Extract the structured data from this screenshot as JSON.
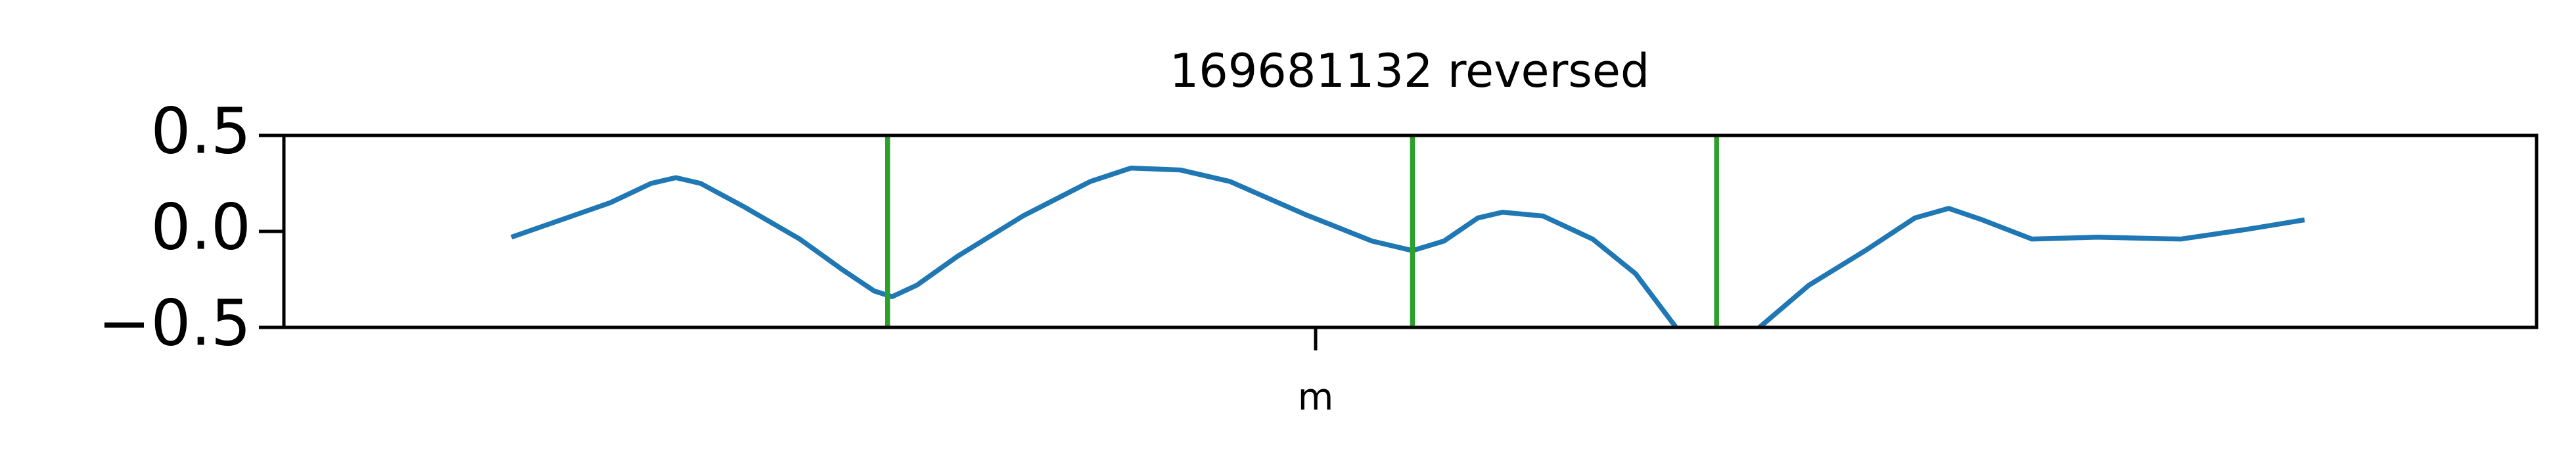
{
  "chart_data": {
    "type": "line",
    "title": "169681132 reversed",
    "x": [
      10.1,
      12.3,
      14.5,
      16.3,
      17.4,
      18.5,
      20.4,
      22.9,
      24.8,
      26.2,
      27.0,
      28.1,
      29.9,
      32.8,
      35.8,
      37.6,
      39.8,
      42.0,
      45.3,
      48.3,
      50.1,
      51.5,
      53.0,
      54.1,
      55.9,
      58.1,
      60.0,
      61.8,
      62.6,
      64.4,
      65.5,
      67.7,
      70.2,
      72.4,
      73.9,
      75.4,
      77.6,
      80.5,
      84.2,
      87.1,
      89.7
    ],
    "series": [
      {
        "color": "#1f77b4",
        "values": [
          -0.03,
          0.06,
          0.15,
          0.25,
          0.28,
          0.25,
          0.13,
          -0.04,
          -0.2,
          -0.31,
          -0.34,
          -0.28,
          -0.13,
          0.08,
          0.26,
          0.33,
          0.32,
          0.26,
          0.09,
          -0.05,
          -0.1,
          -0.05,
          0.07,
          0.1,
          0.08,
          -0.04,
          -0.22,
          -0.5,
          -0.65,
          -0.65,
          -0.5,
          -0.28,
          -0.1,
          0.07,
          0.12,
          0.06,
          -0.04,
          -0.03,
          -0.04,
          0.01,
          0.06
        ]
      }
    ],
    "vlines": {
      "color": "#2ca02c",
      "x": [
        26.8,
        50.1,
        63.6
      ]
    },
    "xlim": [
      0,
      100
    ],
    "xticks": [
      {
        "value": 45.8,
        "label": "m"
      }
    ],
    "ylim": [
      -0.5,
      0.5
    ],
    "yticks": [
      {
        "value": -0.5,
        "label": "−0.5"
      },
      {
        "value": 0,
        "label": "0.0"
      },
      0.5
    ]
  }
}
